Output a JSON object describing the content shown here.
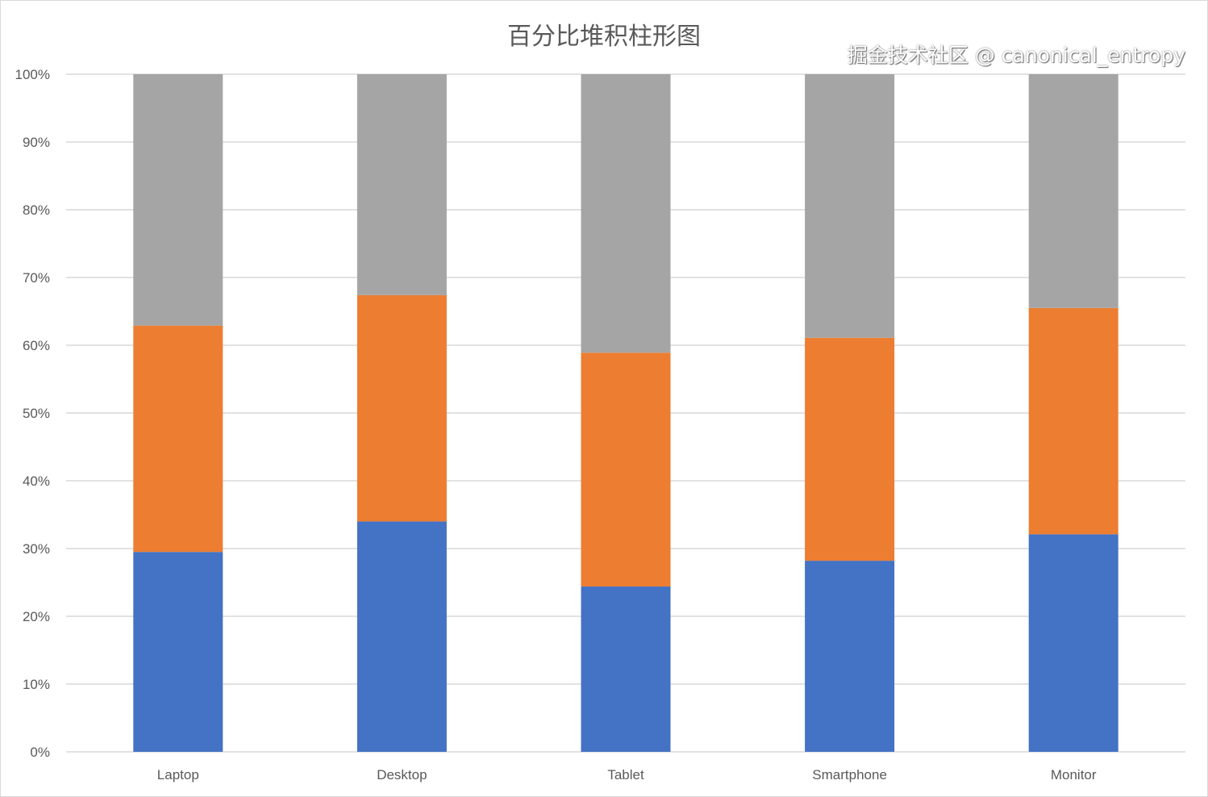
{
  "chart_data": {
    "type": "bar",
    "stacked": "percent",
    "title": "百分比堆积柱形图",
    "categories": [
      "Laptop",
      "Desktop",
      "Tablet",
      "Smartphone",
      "Monitor"
    ],
    "series": [
      {
        "values": [
          29.5,
          34.0,
          24.4,
          28.2,
          32.1
        ],
        "color": "#4472c4"
      },
      {
        "values": [
          33.4,
          33.4,
          34.5,
          32.9,
          33.4
        ],
        "color": "#ed7d31"
      },
      {
        "values": [
          37.1,
          32.6,
          41.1,
          38.9,
          34.5
        ],
        "color": "#a5a5a5"
      }
    ],
    "yticks": [
      "0%",
      "10%",
      "20%",
      "30%",
      "40%",
      "50%",
      "60%",
      "70%",
      "80%",
      "90%",
      "100%"
    ],
    "ylim": [
      0,
      100
    ],
    "grid": true,
    "legend": "none"
  },
  "watermark": "掘金技术社区 @ canonical_entropy"
}
